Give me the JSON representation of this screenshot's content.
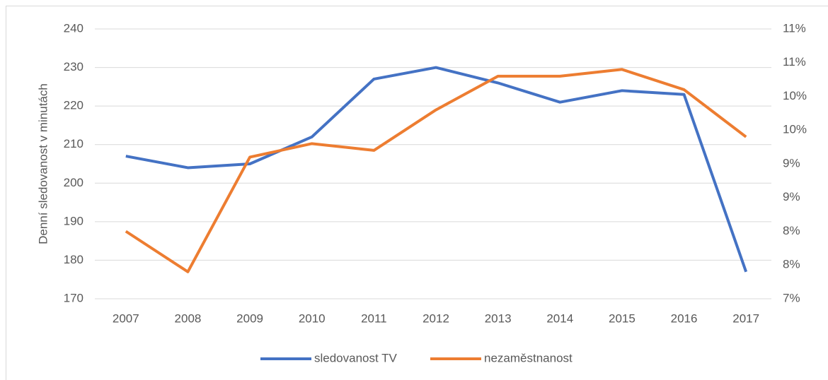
{
  "chart_data": {
    "type": "line",
    "y_label": "Denní sledovanost v minutách",
    "categories": [
      "2007",
      "2008",
      "2009",
      "2010",
      "2011",
      "2012",
      "2013",
      "2014",
      "2015",
      "2016",
      "2017"
    ],
    "series": [
      {
        "name": "sledovanost TV",
        "color": "#4472c4",
        "values": [
          207,
          204,
          205,
          212,
          227,
          230,
          226,
          221,
          224,
          223,
          177
        ]
      },
      {
        "name": "nezaměstnanost",
        "color": "#ed7d31",
        "axis": "y2",
        "values": [
          8.0,
          7.4,
          9.1,
          9.3,
          9.2,
          9.8,
          10.3,
          10.3,
          10.4,
          10.1,
          9.4
        ]
      }
    ],
    "ylim": [
      170,
      240
    ],
    "yticks": [
      170,
      180,
      190,
      200,
      210,
      220,
      230,
      240
    ],
    "y2lim": [
      7,
      11
    ],
    "y2ticks": [
      {
        "value": 7,
        "label": "7%"
      },
      {
        "value": 7.5,
        "label": "8%"
      },
      {
        "value": 8,
        "label": "8%"
      },
      {
        "value": 8.5,
        "label": "9%"
      },
      {
        "value": 9,
        "label": "9%"
      },
      {
        "value": 9.5,
        "label": "10%"
      },
      {
        "value": 10,
        "label": "10%"
      },
      {
        "value": 10.5,
        "label": "11%"
      },
      {
        "value": 11,
        "label": "11%"
      }
    ],
    "grid": true,
    "legend": "bottom"
  }
}
